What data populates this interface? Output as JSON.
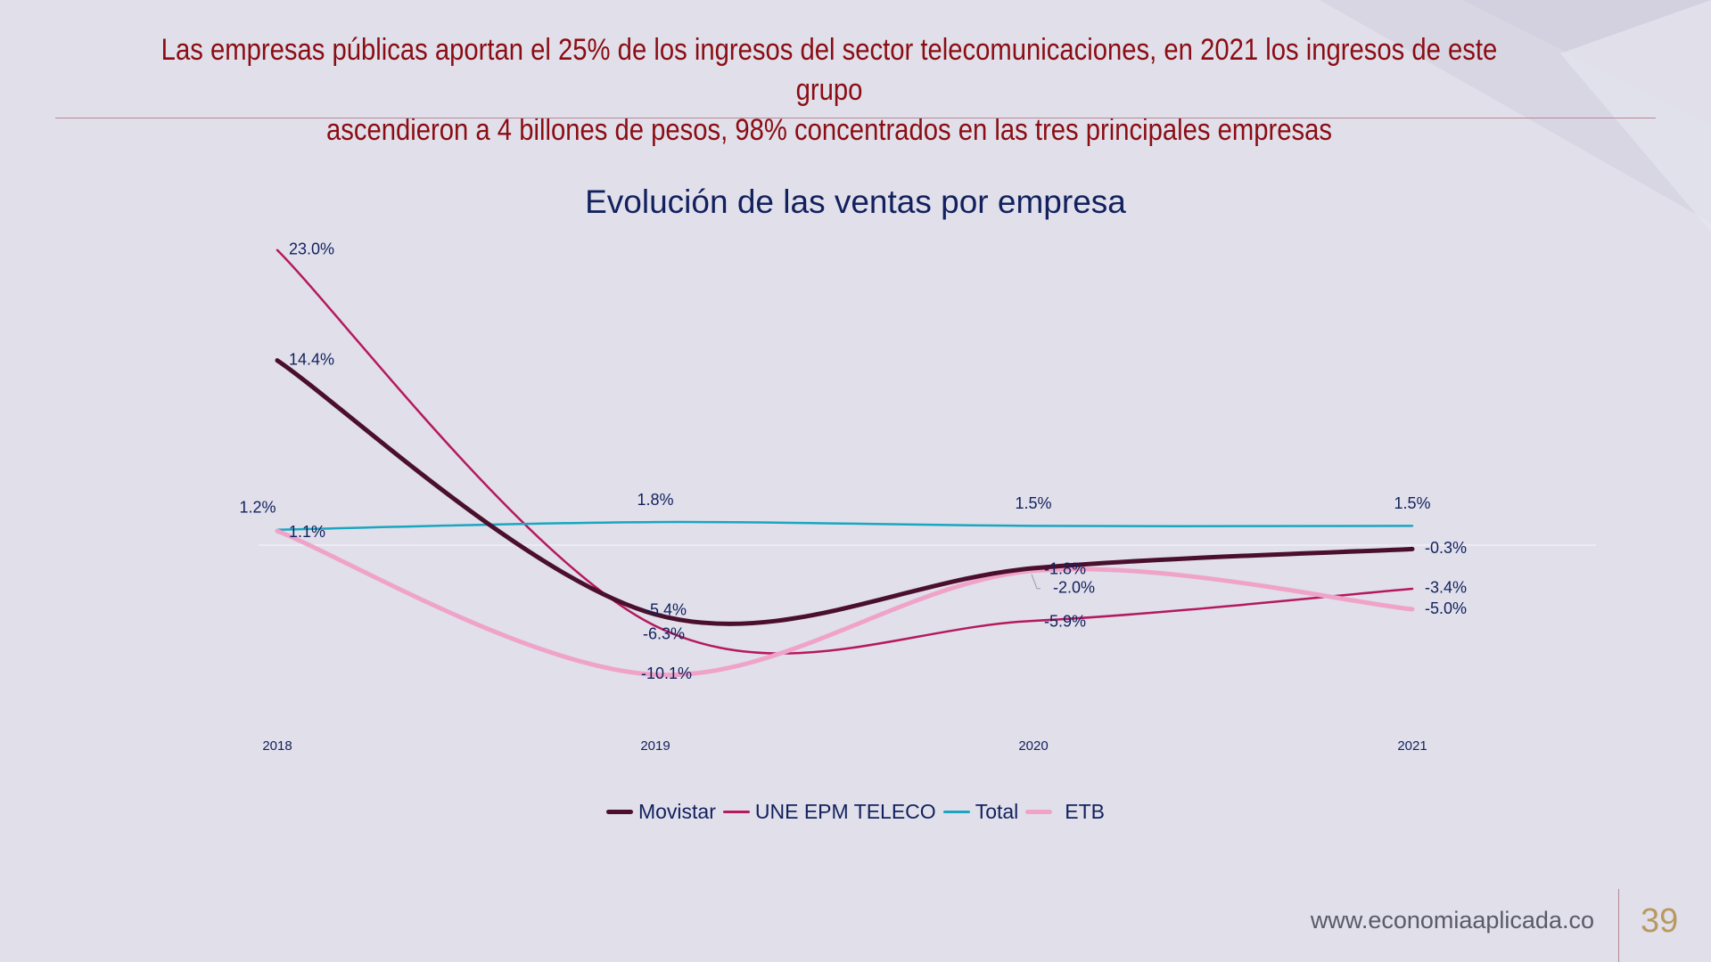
{
  "slide": {
    "title_line1": "Las empresas públicas aportan el 25% de los ingresos del sector telecomunicaciones, en 2021 los ingresos de este grupo",
    "title_line2": "ascendieron a 4 billones de pesos, 98% concentrados en las tres principales empresas",
    "footer_url": "www.economiaaplicada.co",
    "page_number": "39"
  },
  "chart_data": {
    "type": "line",
    "title": "Evolución de las ventas por empresa",
    "categories": [
      "2018",
      "2019",
      "2020",
      "2021"
    ],
    "series": [
      {
        "name": "Movistar",
        "values": [
          14.4,
          -5.4,
          -1.8,
          -0.3
        ],
        "labels": [
          "14.4%",
          "-5.4%",
          "-1.8%",
          "-0.3%"
        ],
        "color": "#4b0f2e"
      },
      {
        "name": "UNE EPM TELECO",
        "values": [
          23.0,
          -6.3,
          -5.9,
          -3.4
        ],
        "labels": [
          "23.0%",
          "-6.3%",
          "-5.9%",
          "-3.4%"
        ],
        "color": "#b5195e"
      },
      {
        "name": "Total",
        "values": [
          1.2,
          1.8,
          1.5,
          1.5
        ],
        "labels": [
          "1.2%",
          "1.8%",
          "1.5%",
          "1.5%"
        ],
        "color": "#1aa6bf"
      },
      {
        "name": "ETB",
        "values": [
          1.1,
          -10.1,
          -2.0,
          -5.0
        ],
        "labels": [
          "1.1%",
          "-10.1%",
          "-2.0%",
          "-5.0%"
        ],
        "color": "#f0a3c8"
      }
    ],
    "ylim": [
      -20,
      25
    ],
    "grid": false,
    "legend": "bottom"
  }
}
